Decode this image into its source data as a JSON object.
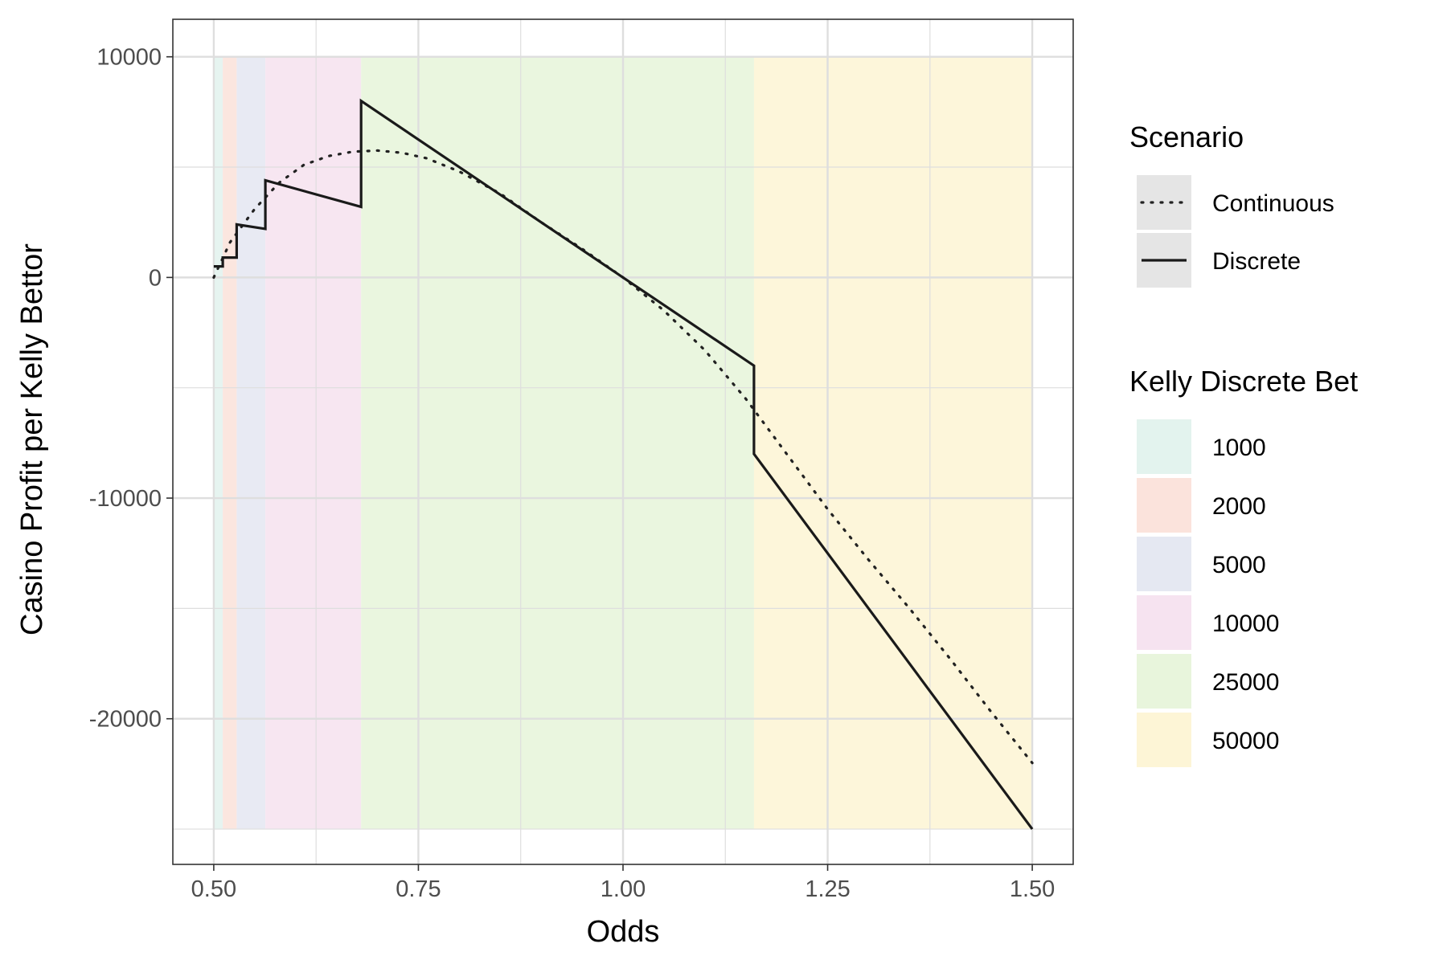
{
  "chart_data": {
    "type": "line",
    "title": "",
    "xlabel": "Odds",
    "ylabel": "Casino Profit per Kelly Bettor",
    "xlim": [
      0.45,
      1.55
    ],
    "ylim": [
      -26600,
      11700
    ],
    "x_ticks": [
      0.5,
      0.75,
      1.0,
      1.25,
      1.5
    ],
    "x_tick_labels": [
      "0.50",
      "0.75",
      "1.00",
      "1.25",
      "1.50"
    ],
    "y_ticks": [
      10000,
      0,
      -10000,
      -20000
    ],
    "y_tick_labels": [
      "10000",
      "0",
      "-10000",
      "-20000"
    ],
    "grid": true,
    "legend_position": "right",
    "bands": {
      "legend_title": "Kelly Discrete Bet",
      "y_range": [
        -25000,
        10000
      ],
      "items": [
        {
          "label": "1000",
          "x_start": 0.5,
          "x_end": 0.511,
          "color": "#e3f3ee"
        },
        {
          "label": "2000",
          "x_start": 0.511,
          "x_end": 0.528,
          "color": "#fbe3dc"
        },
        {
          "label": "5000",
          "x_start": 0.528,
          "x_end": 0.563,
          "color": "#e5e8f2"
        },
        {
          "label": "10000",
          "x_start": 0.563,
          "x_end": 0.68,
          "color": "#f6e3f0"
        },
        {
          "label": "25000",
          "x_start": 0.68,
          "x_end": 1.16,
          "color": "#e8f5dc"
        },
        {
          "label": "50000",
          "x_start": 1.16,
          "x_end": 1.5,
          "color": "#fdf5d6"
        }
      ]
    },
    "scenario_legend_title": "Scenario",
    "series": [
      {
        "name": "Continuous",
        "style": "dotted",
        "color": "#222222",
        "x": [
          0.5,
          0.52,
          0.55,
          0.58,
          0.61,
          0.64,
          0.67,
          0.7,
          0.73,
          0.76,
          0.8,
          0.85,
          0.9,
          0.95,
          1.0,
          1.05,
          1.1,
          1.15,
          1.2,
          1.25,
          1.3,
          1.35,
          1.4,
          1.45,
          1.5
        ],
        "y": [
          0,
          1600,
          3100,
          4300,
          5100,
          5500,
          5700,
          5750,
          5650,
          5400,
          4800,
          3800,
          2500,
          1300,
          0,
          -1500,
          -3300,
          -5500,
          -8000,
          -10500,
          -12800,
          -15000,
          -17300,
          -19700,
          -22000
        ]
      },
      {
        "name": "Discrete",
        "style": "solid",
        "color": "#1a1a1a",
        "x": [
          0.5,
          0.511,
          0.511,
          0.518,
          0.518,
          0.528,
          0.528,
          0.563,
          0.563,
          0.68,
          0.68,
          1.0,
          1.16,
          1.16,
          1.5
        ],
        "y": [
          500,
          500,
          900,
          900,
          900,
          900,
          2400,
          2200,
          4400,
          3200,
          8000,
          0,
          -4000,
          -8000,
          -25000
        ]
      }
    ]
  }
}
